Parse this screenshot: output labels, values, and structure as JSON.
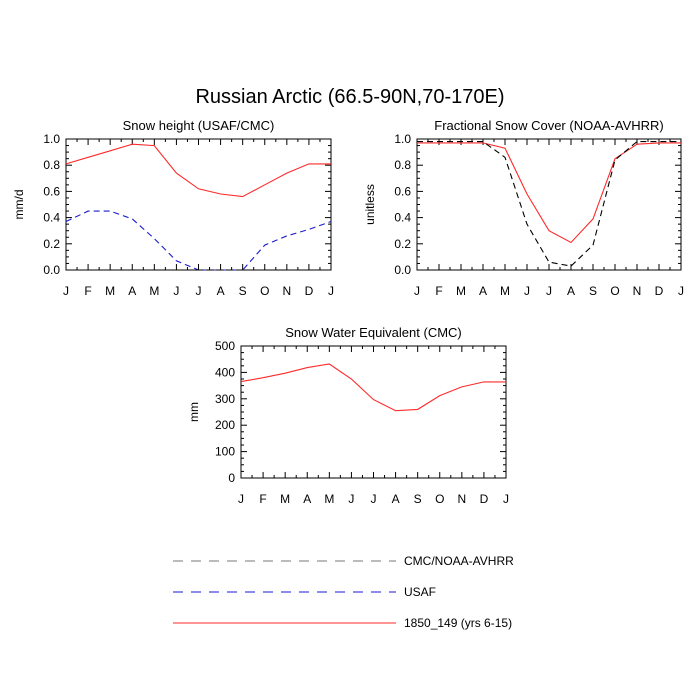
{
  "title": "Russian Arctic (66.5-90N,70-170E)",
  "colors": {
    "model": "#ff2a2a",
    "usaf": "#1a1acc",
    "cmc_noaa": "#000000",
    "legend_cmc": "#777777"
  },
  "legend": [
    {
      "label": "CMC/NOAA-AVHRR",
      "style": "dashed",
      "color_key": "legend_cmc"
    },
    {
      "label": "USAF",
      "style": "dashed",
      "color_key": "usaf"
    },
    {
      "label": "1850_149 (yrs 6-15)",
      "style": "solid",
      "color_key": "model"
    }
  ],
  "chart_data": [
    {
      "type": "line",
      "title": "Snow height (USAF/CMC)",
      "ylabel": "mm/d",
      "xlabel": "",
      "categories": [
        "J",
        "F",
        "M",
        "A",
        "M",
        "J",
        "J",
        "A",
        "S",
        "O",
        "N",
        "D",
        "J"
      ],
      "ylim": [
        0,
        1.0
      ],
      "yticks": [
        "0.0",
        "0.2",
        "0.4",
        "0.6",
        "0.8",
        "1.0"
      ],
      "ytick_values": [
        0,
        0.2,
        0.4,
        0.6,
        0.8,
        1.0
      ],
      "grid": false,
      "series": [
        {
          "name": "1850_149 (yrs 6-15)",
          "style": "solid",
          "color_key": "model",
          "values": [
            0.81,
            0.86,
            0.91,
            0.96,
            0.95,
            0.74,
            0.62,
            0.58,
            0.56,
            0.65,
            0.74,
            0.81,
            0.81
          ]
        },
        {
          "name": "USAF",
          "style": "dashed",
          "color_key": "usaf",
          "values": [
            0.37,
            0.45,
            0.45,
            0.39,
            0.24,
            0.07,
            0.0,
            0.0,
            0.0,
            0.19,
            0.26,
            0.31,
            0.37
          ]
        },
        {
          "name": "CMC/NOAA-AVHRR",
          "style": "dashed",
          "color_key": "cmc_noaa",
          "values": [
            0,
            0,
            0,
            0,
            0,
            0,
            0,
            0,
            0,
            0,
            0,
            0,
            0
          ]
        }
      ]
    },
    {
      "type": "line",
      "title": "Fractional Snow Cover (NOAA-AVHRR)",
      "ylabel": "unitless",
      "xlabel": "",
      "categories": [
        "J",
        "F",
        "M",
        "A",
        "M",
        "J",
        "J",
        "A",
        "S",
        "O",
        "N",
        "D",
        "J"
      ],
      "ylim": [
        0,
        1.0
      ],
      "yticks": [
        "0.0",
        "0.2",
        "0.4",
        "0.6",
        "0.8",
        "1.0"
      ],
      "ytick_values": [
        0,
        0.2,
        0.4,
        0.6,
        0.8,
        1.0
      ],
      "grid": false,
      "series": [
        {
          "name": "1850_149 (yrs 6-15)",
          "style": "solid",
          "color_key": "model",
          "values": [
            0.97,
            0.97,
            0.97,
            0.97,
            0.93,
            0.58,
            0.3,
            0.21,
            0.39,
            0.85,
            0.96,
            0.97,
            0.97
          ]
        },
        {
          "name": "CMC/NOAA-AVHRR",
          "style": "dashed",
          "color_key": "cmc_noaa",
          "values": [
            0.98,
            0.98,
            0.98,
            0.98,
            0.86,
            0.35,
            0.06,
            0.03,
            0.19,
            0.84,
            0.98,
            0.98,
            0.98
          ]
        }
      ]
    },
    {
      "type": "line",
      "title": "Snow Water Equivalent (CMC)",
      "ylabel": "mm",
      "xlabel": "",
      "categories": [
        "J",
        "F",
        "M",
        "A",
        "M",
        "J",
        "J",
        "A",
        "S",
        "O",
        "N",
        "D",
        "J"
      ],
      "ylim": [
        0,
        500
      ],
      "yticks": [
        "0",
        "100",
        "200",
        "300",
        "400",
        "500"
      ],
      "ytick_values": [
        0,
        100,
        200,
        300,
        400,
        500
      ],
      "grid": false,
      "series": [
        {
          "name": "1850_149 (yrs 6-15)",
          "style": "solid",
          "color_key": "model",
          "values": [
            365,
            380,
            397,
            418,
            432,
            375,
            297,
            255,
            260,
            312,
            345,
            364,
            364
          ]
        },
        {
          "name": "CMC/NOAA-AVHRR",
          "style": "dashed",
          "color_key": "cmc_noaa",
          "values": [
            0,
            0,
            0,
            0,
            0,
            0,
            0,
            0,
            0,
            0,
            0,
            0,
            0
          ]
        }
      ]
    }
  ]
}
